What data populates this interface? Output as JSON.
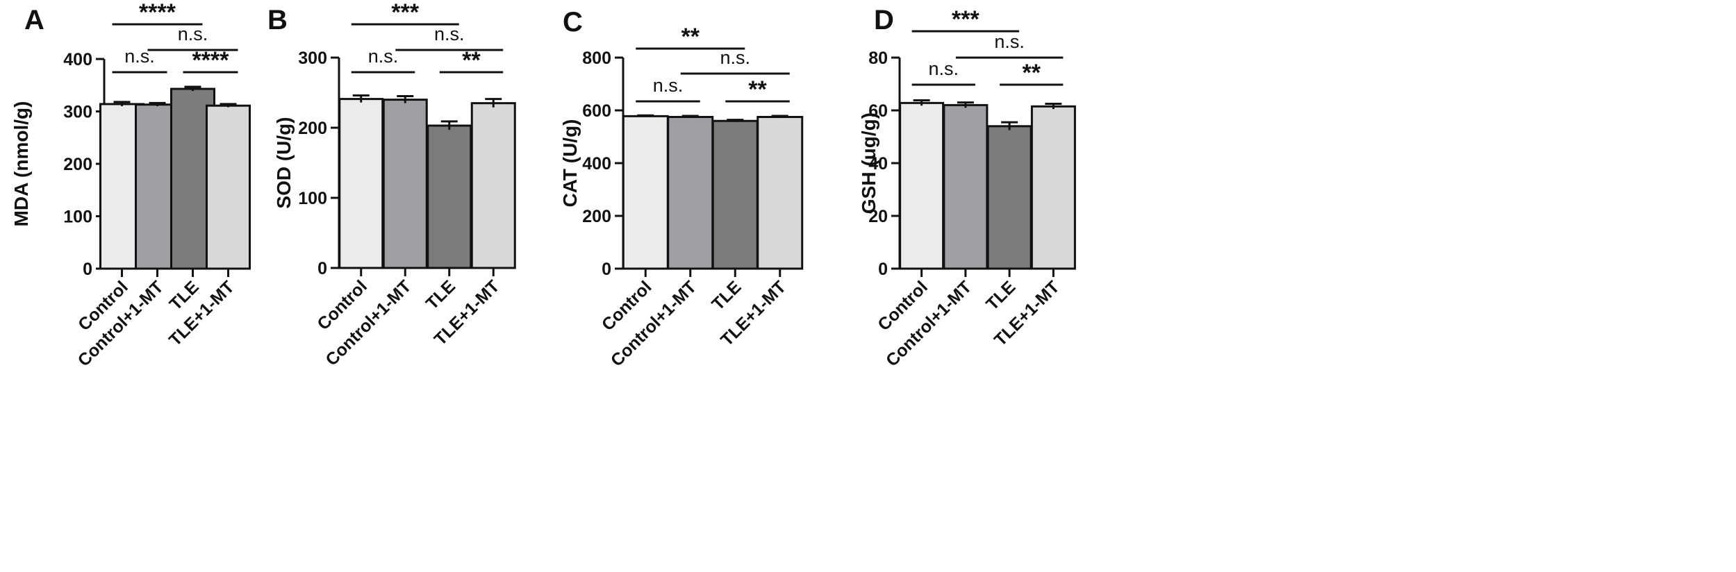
{
  "chart_data": [
    {
      "type": "bar",
      "panel": "A",
      "ylabel": "MDA (nmol/g)",
      "ylim": [
        0,
        400
      ],
      "yticks": [
        "0",
        "100",
        "200",
        "300",
        "400"
      ],
      "categories": [
        "Control",
        "Control+1-MT",
        "TLE",
        "TLE+1-MT"
      ],
      "values": [
        314,
        313,
        343,
        311
      ],
      "errors": [
        4,
        3,
        4,
        3
      ],
      "colors": [
        "#ebebeb",
        "#a0a0a4",
        "#7c7c7c",
        "#d8d8d8"
      ],
      "comparisons": [
        {
          "from": 0,
          "to": 2,
          "level": 3,
          "label": "****"
        },
        {
          "from": 1,
          "to": 3,
          "level": 2,
          "label": "n.s."
        },
        {
          "from": 0,
          "to": 1,
          "level": 1,
          "label": "n.s."
        },
        {
          "from": 2,
          "to": 3,
          "level": 1,
          "label": "****"
        }
      ]
    },
    {
      "type": "bar",
      "panel": "B",
      "ylabel": "SOD (U/g)",
      "ylim": [
        0,
        300
      ],
      "yticks": [
        "0",
        "100",
        "200",
        "300"
      ],
      "categories": [
        "Control",
        "Control+1-MT",
        "TLE",
        "TLE+1-MT"
      ],
      "values": [
        241,
        240,
        203,
        235
      ],
      "errors": [
        5,
        5,
        6,
        6
      ],
      "colors": [
        "#ebebeb",
        "#a0a0a4",
        "#7c7c7c",
        "#d8d8d8"
      ],
      "comparisons": [
        {
          "from": 0,
          "to": 2,
          "level": 3,
          "label": "***"
        },
        {
          "from": 1,
          "to": 3,
          "level": 2,
          "label": "n.s."
        },
        {
          "from": 0,
          "to": 1,
          "level": 1,
          "label": "n.s."
        },
        {
          "from": 2,
          "to": 3,
          "level": 1,
          "label": "**"
        }
      ]
    },
    {
      "type": "bar",
      "panel": "C",
      "ylabel": "CAT (U/g)",
      "ylim": [
        0,
        800
      ],
      "yticks": [
        "0",
        "200",
        "400",
        "600",
        "800"
      ],
      "categories": [
        "Control",
        "Control+1-MT",
        "TLE",
        "TLE+1-MT"
      ],
      "values": [
        578,
        575,
        560,
        575
      ],
      "errors": [
        3,
        4,
        4,
        4
      ],
      "colors": [
        "#ebebeb",
        "#a0a0a4",
        "#7c7c7c",
        "#d8d8d8"
      ],
      "comparisons": [
        {
          "from": 0,
          "to": 2,
          "level": 3,
          "label": "**"
        },
        {
          "from": 1,
          "to": 3,
          "level": 2,
          "label": "n.s."
        },
        {
          "from": 0,
          "to": 1,
          "level": 1,
          "label": "n.s."
        },
        {
          "from": 2,
          "to": 3,
          "level": 1,
          "label": "**"
        }
      ]
    },
    {
      "type": "bar",
      "panel": "D",
      "ylabel": "GSH (ug/g)",
      "ylim": [
        0,
        80
      ],
      "yticks": [
        "0",
        "20",
        "40",
        "60",
        "80"
      ],
      "categories": [
        "Control",
        "Control+1-MT",
        "TLE",
        "TLE+1-MT"
      ],
      "values": [
        62.8,
        62.0,
        54.0,
        61.5
      ],
      "errors": [
        1.0,
        1.0,
        1.5,
        1.0
      ],
      "colors": [
        "#ebebeb",
        "#a0a0a4",
        "#7c7c7c",
        "#d8d8d8"
      ],
      "comparisons": [
        {
          "from": 0,
          "to": 2,
          "level": 3,
          "label": "***"
        },
        {
          "from": 1,
          "to": 3,
          "level": 2,
          "label": "n.s."
        },
        {
          "from": 0,
          "to": 1,
          "level": 1,
          "label": "n.s."
        },
        {
          "from": 2,
          "to": 3,
          "level": 1,
          "label": "**"
        }
      ]
    }
  ]
}
